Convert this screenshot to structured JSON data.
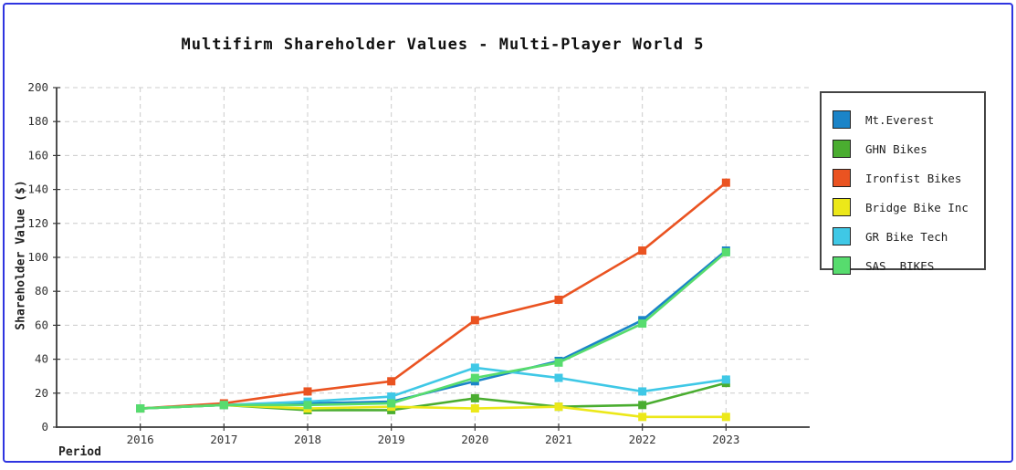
{
  "frame": {
    "border_color": "#2f35e0"
  },
  "chart_data": {
    "type": "line",
    "title": "Multifirm Shareholder Values - Multi-Player World 5",
    "xlabel": "Period",
    "ylabel": "Shareholder Value ($)",
    "ylim": [
      0,
      200
    ],
    "y_tick_step": 20,
    "grid": true,
    "legend_position": "right",
    "categories": [
      "2016",
      "2017",
      "2018",
      "2019",
      "2020",
      "2021",
      "2022",
      "2023"
    ],
    "series": [
      {
        "name": "Mt.Everest",
        "color": "#1b84c8",
        "values": [
          11,
          13,
          14,
          15,
          27,
          39,
          63,
          104
        ]
      },
      {
        "name": "GHN Bikes",
        "color": "#4aad30",
        "values": [
          11,
          13,
          10,
          10,
          17,
          12,
          13,
          26
        ]
      },
      {
        "name": "Ironfist Bikes",
        "color": "#ea5321",
        "values": [
          11,
          14,
          21,
          27,
          63,
          75,
          104,
          144
        ]
      },
      {
        "name": "Bridge Bike Inc",
        "color": "#ece819",
        "values": [
          11,
          13,
          11,
          12,
          11,
          12,
          6,
          6
        ]
      },
      {
        "name": "GR Bike Tech",
        "color": "#3fc8e6",
        "values": [
          11,
          13,
          15,
          18,
          35,
          29,
          21,
          28
        ]
      },
      {
        "name": "SAS  BIKES",
        "color": "#57dc6e",
        "values": [
          11,
          13,
          13,
          14,
          29,
          38,
          61,
          103
        ]
      }
    ],
    "style": {
      "grid_color": "#cccccc",
      "axis_color": "#3a3a3a",
      "tick_label_color": "#333333"
    }
  }
}
